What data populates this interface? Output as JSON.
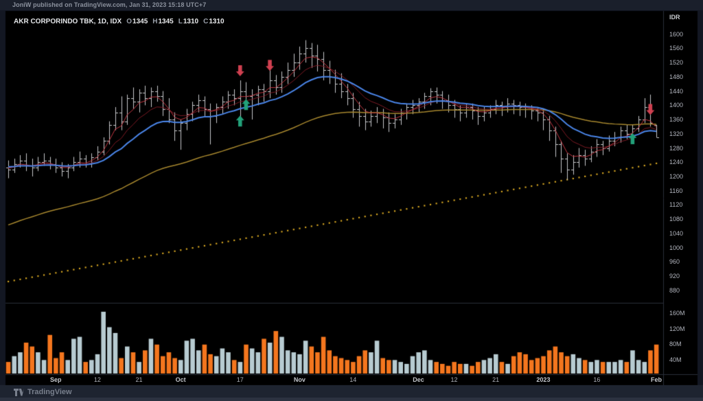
{
  "header": {
    "text": "JoniW published on TradingView.com, Jan 31, 2023 15:18 UTC+7"
  },
  "legend": {
    "title": "AKR CORPORINDO TBK, 1D, IDX",
    "ohlc": [
      {
        "label": "O",
        "value": "1345"
      },
      {
        "label": "H",
        "value": "1345"
      },
      {
        "label": "L",
        "value": "1310"
      },
      {
        "label": "C",
        "value": "1310"
      }
    ]
  },
  "price_axis": {
    "currency": "IDR",
    "labels": [
      1600,
      1560,
      1520,
      1480,
      1440,
      1400,
      1360,
      1320,
      1280,
      1240,
      1200,
      1160,
      1120,
      1080,
      1040,
      1000,
      960,
      920,
      880
    ]
  },
  "volume_axis": {
    "labels": [
      {
        "text": "160M",
        "value": 160
      },
      {
        "text": "120M",
        "value": 120
      },
      {
        "text": "80M",
        "value": 80
      },
      {
        "text": "40M",
        "value": 40
      }
    ]
  },
  "footer": {
    "brand": "TradingView"
  },
  "colors": {
    "pane_bg": "#000000",
    "frame_bg": "#131722",
    "border": "#2a2f3a",
    "bar": "#c9cacc",
    "vol_up": "#b7cbd1",
    "vol_down": "#f4761e",
    "ema_fast": "#c23540",
    "ema_slow": "#7e1a24",
    "ema_blue": "#4a85e8",
    "ma_gold": "#a8882e",
    "trend_dotted": "#d2a321",
    "arrow_up": "#22a079",
    "arrow_down": "#cf4050",
    "axis_text": "#b2b5be"
  },
  "chart_data": {
    "type": "ohlc_bars",
    "title": "AKR CORPORINDO TBK, 1D, IDX",
    "ylabel": "IDR",
    "price_range": [
      845,
      1665
    ],
    "volume_range_M": [
      0,
      187
    ],
    "grid": false,
    "legend_position": "top-left",
    "columns": [
      "open",
      "high",
      "low",
      "close",
      "volume_M"
    ],
    "bars": [
      [
        1225,
        1245,
        1195,
        1220,
        30
      ],
      [
        1220,
        1250,
        1210,
        1235,
        45
      ],
      [
        1235,
        1260,
        1225,
        1245,
        55
      ],
      [
        1245,
        1265,
        1215,
        1230,
        80
      ],
      [
        1230,
        1250,
        1200,
        1225,
        70
      ],
      [
        1225,
        1255,
        1215,
        1240,
        55
      ],
      [
        1240,
        1265,
        1230,
        1245,
        35
      ],
      [
        1245,
        1255,
        1220,
        1235,
        100
      ],
      [
        1235,
        1250,
        1210,
        1225,
        40
      ],
      [
        1225,
        1240,
        1200,
        1215,
        55
      ],
      [
        1215,
        1235,
        1195,
        1225,
        35
      ],
      [
        1225,
        1255,
        1215,
        1240,
        90
      ],
      [
        1240,
        1270,
        1225,
        1250,
        95
      ],
      [
        1250,
        1260,
        1225,
        1235,
        30
      ],
      [
        1235,
        1265,
        1225,
        1255,
        35
      ],
      [
        1255,
        1285,
        1245,
        1270,
        50
      ],
      [
        1270,
        1310,
        1260,
        1300,
        160
      ],
      [
        1300,
        1355,
        1290,
        1345,
        120
      ],
      [
        1345,
        1395,
        1330,
        1380,
        105
      ],
      [
        1380,
        1425,
        1330,
        1355,
        40
      ],
      [
        1355,
        1430,
        1345,
        1420,
        70
      ],
      [
        1420,
        1450,
        1390,
        1410,
        55
      ],
      [
        1410,
        1445,
        1380,
        1435,
        30
      ],
      [
        1435,
        1455,
        1400,
        1420,
        60
      ],
      [
        1420,
        1450,
        1395,
        1440,
        90
      ],
      [
        1440,
        1455,
        1410,
        1425,
        75
      ],
      [
        1425,
        1440,
        1370,
        1390,
        45
      ],
      [
        1390,
        1420,
        1350,
        1360,
        55
      ],
      [
        1360,
        1380,
        1300,
        1330,
        40
      ],
      [
        1330,
        1360,
        1275,
        1350,
        35
      ],
      [
        1350,
        1390,
        1330,
        1375,
        85
      ],
      [
        1375,
        1410,
        1355,
        1400,
        90
      ],
      [
        1400,
        1430,
        1380,
        1415,
        60
      ],
      [
        1415,
        1425,
        1370,
        1390,
        75
      ],
      [
        1390,
        1405,
        1290,
        1370,
        50
      ],
      [
        1370,
        1405,
        1350,
        1395,
        45
      ],
      [
        1395,
        1425,
        1375,
        1410,
        65
      ],
      [
        1410,
        1440,
        1390,
        1430,
        55
      ],
      [
        1430,
        1445,
        1400,
        1420,
        35
      ],
      [
        1420,
        1470,
        1360,
        1440,
        30
      ],
      [
        1440,
        1465,
        1395,
        1425,
        75
      ],
      [
        1425,
        1445,
        1360,
        1430,
        65
      ],
      [
        1430,
        1455,
        1400,
        1445,
        55
      ],
      [
        1445,
        1460,
        1410,
        1440,
        90
      ],
      [
        1440,
        1505,
        1420,
        1470,
        80
      ],
      [
        1470,
        1485,
        1430,
        1450,
        110
      ],
      [
        1450,
        1495,
        1435,
        1480,
        95
      ],
      [
        1480,
        1520,
        1460,
        1500,
        60
      ],
      [
        1500,
        1545,
        1480,
        1520,
        55
      ],
      [
        1520,
        1565,
        1500,
        1545,
        50
      ],
      [
        1545,
        1583,
        1520,
        1560,
        85
      ],
      [
        1560,
        1575,
        1505,
        1540,
        70
      ],
      [
        1540,
        1570,
        1495,
        1530,
        55
      ],
      [
        1530,
        1550,
        1470,
        1500,
        95
      ],
      [
        1500,
        1525,
        1460,
        1480,
        60
      ],
      [
        1480,
        1500,
        1435,
        1460,
        45
      ],
      [
        1460,
        1490,
        1420,
        1440,
        40
      ],
      [
        1440,
        1460,
        1400,
        1420,
        35
      ],
      [
        1420,
        1435,
        1365,
        1390,
        30
      ],
      [
        1390,
        1410,
        1340,
        1370,
        45
      ],
      [
        1370,
        1390,
        1330,
        1355,
        60
      ],
      [
        1355,
        1385,
        1340,
        1370,
        55
      ],
      [
        1370,
        1395,
        1350,
        1380,
        85
      ],
      [
        1380,
        1390,
        1335,
        1365,
        40
      ],
      [
        1365,
        1380,
        1325,
        1350,
        35
      ],
      [
        1350,
        1375,
        1335,
        1360,
        35
      ],
      [
        1360,
        1390,
        1345,
        1380,
        30
      ],
      [
        1380,
        1405,
        1360,
        1395,
        25
      ],
      [
        1395,
        1415,
        1375,
        1400,
        45
      ],
      [
        1400,
        1420,
        1380,
        1410,
        55
      ],
      [
        1410,
        1435,
        1390,
        1425,
        60
      ],
      [
        1425,
        1448,
        1400,
        1440,
        35
      ],
      [
        1440,
        1450,
        1405,
        1430,
        30
      ],
      [
        1430,
        1440,
        1390,
        1415,
        25
      ],
      [
        1415,
        1430,
        1380,
        1400,
        20
      ],
      [
        1400,
        1415,
        1365,
        1390,
        30
      ],
      [
        1390,
        1400,
        1355,
        1380,
        25
      ],
      [
        1380,
        1405,
        1365,
        1395,
        25
      ],
      [
        1395,
        1405,
        1360,
        1385,
        20
      ],
      [
        1385,
        1395,
        1345,
        1370,
        30
      ],
      [
        1370,
        1395,
        1355,
        1380,
        35
      ],
      [
        1380,
        1400,
        1365,
        1390,
        40
      ],
      [
        1390,
        1415,
        1375,
        1400,
        50
      ],
      [
        1400,
        1410,
        1370,
        1395,
        30
      ],
      [
        1395,
        1420,
        1380,
        1405,
        25
      ],
      [
        1405,
        1415,
        1375,
        1400,
        45
      ],
      [
        1400,
        1410,
        1370,
        1395,
        55
      ],
      [
        1395,
        1405,
        1365,
        1390,
        50
      ],
      [
        1390,
        1400,
        1360,
        1385,
        35
      ],
      [
        1385,
        1395,
        1355,
        1380,
        40
      ],
      [
        1380,
        1390,
        1330,
        1360,
        45
      ],
      [
        1360,
        1370,
        1300,
        1330,
        60
      ],
      [
        1330,
        1340,
        1255,
        1290,
        70
      ],
      [
        1290,
        1300,
        1210,
        1250,
        55
      ],
      [
        1250,
        1265,
        1190,
        1220,
        45
      ],
      [
        1220,
        1260,
        1205,
        1240,
        50
      ],
      [
        1240,
        1280,
        1225,
        1260,
        40
      ],
      [
        1260,
        1275,
        1230,
        1250,
        35
      ],
      [
        1250,
        1285,
        1240,
        1270,
        30
      ],
      [
        1270,
        1305,
        1255,
        1290,
        35
      ],
      [
        1290,
        1300,
        1260,
        1280,
        30
      ],
      [
        1280,
        1315,
        1270,
        1300,
        30
      ],
      [
        1300,
        1325,
        1285,
        1310,
        30
      ],
      [
        1310,
        1340,
        1295,
        1330,
        35
      ],
      [
        1330,
        1345,
        1305,
        1320,
        30
      ],
      [
        1320,
        1345,
        1300,
        1335,
        60
      ],
      [
        1335,
        1370,
        1325,
        1360,
        35
      ],
      [
        1360,
        1420,
        1350,
        1395,
        30
      ],
      [
        1395,
        1430,
        1340,
        1350,
        60
      ],
      [
        1345,
        1345,
        1310,
        1310,
        75
      ]
    ],
    "x_ticks": [
      {
        "label": "Sep",
        "bar": 8,
        "month": true
      },
      {
        "label": "12",
        "bar": 15,
        "month": false
      },
      {
        "label": "21",
        "bar": 22,
        "month": false
      },
      {
        "label": "Oct",
        "bar": 29,
        "month": true
      },
      {
        "label": "17",
        "bar": 39,
        "month": false
      },
      {
        "label": "Nov",
        "bar": 49,
        "month": true
      },
      {
        "label": "14",
        "bar": 58,
        "month": false
      },
      {
        "label": "Dec",
        "bar": 69,
        "month": true
      },
      {
        "label": "12",
        "bar": 75,
        "month": false
      },
      {
        "label": "21",
        "bar": 82,
        "month": false
      },
      {
        "label": "2023",
        "bar": 90,
        "month": true
      },
      {
        "label": "16",
        "bar": 99,
        "month": false
      },
      {
        "label": "Feb",
        "bar": 109,
        "month": true
      }
    ],
    "overlays": [
      {
        "name": "ema-fast-red",
        "type": "ema",
        "period": 4,
        "seed": 1225,
        "color_key": "ema_fast",
        "width": 1
      },
      {
        "name": "ema-slow-red",
        "type": "ema",
        "period": 9,
        "seed": 1225,
        "color_key": "ema_slow",
        "width": 1
      },
      {
        "name": "ema-blue",
        "type": "ema",
        "period": 18,
        "seed": 1228,
        "color_key": "ema_blue",
        "width": 2
      },
      {
        "name": "ma-gold",
        "type": "ema",
        "period": 55,
        "seed": 1058,
        "color_key": "ma_gold",
        "width": 1.5
      },
      {
        "name": "trend-dotted-gold",
        "type": "linear_dotted",
        "start_price": 905,
        "end_price": 1237,
        "color_key": "trend_dotted"
      }
    ],
    "markers": [
      {
        "bar": 39,
        "price": 1497,
        "dir": "down"
      },
      {
        "bar": 44,
        "price": 1512,
        "dir": "down"
      },
      {
        "bar": 40,
        "price": 1402,
        "dir": "up"
      },
      {
        "bar": 39,
        "price": 1356,
        "dir": "up"
      },
      {
        "bar": 105,
        "price": 1306,
        "dir": "up"
      },
      {
        "bar": 108,
        "price": 1388,
        "dir": "down"
      }
    ]
  }
}
